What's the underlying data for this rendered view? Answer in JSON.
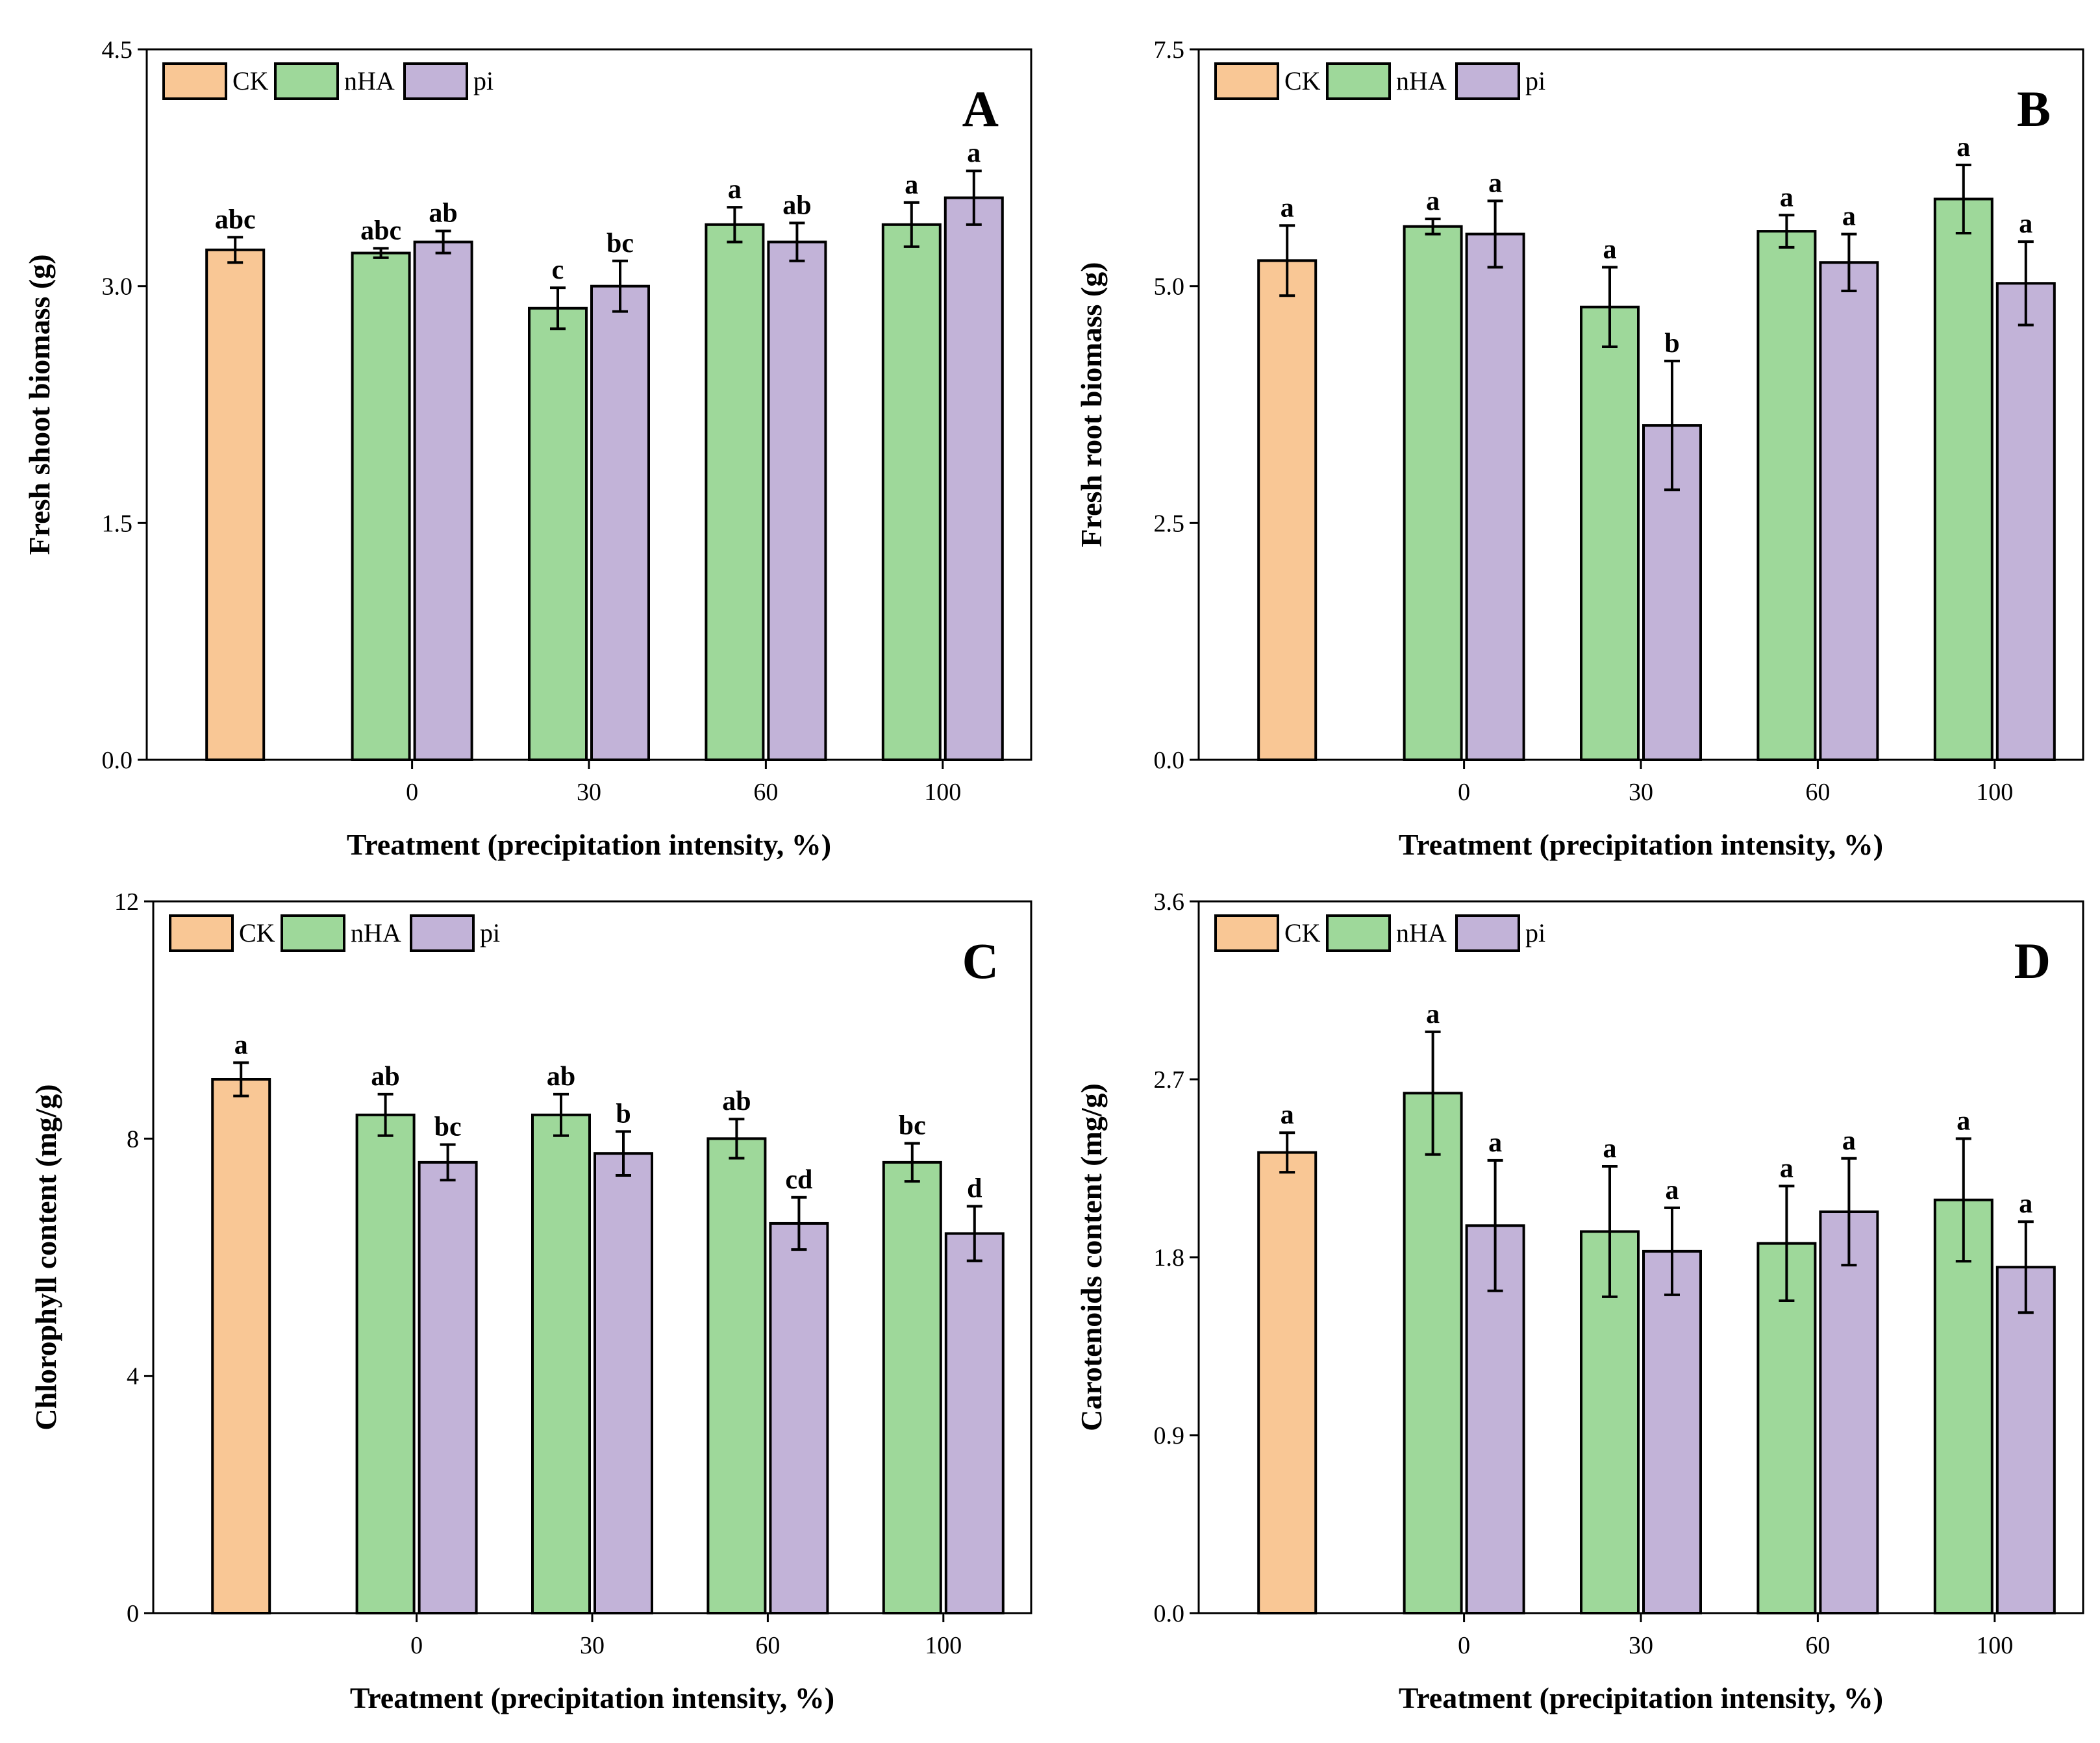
{
  "figure_title": "",
  "chart_data": [
    {
      "panel": "A",
      "type": "bar",
      "title": "",
      "xlabel": "Treatment (precipitation intensity, %)",
      "ylabel": "Fresh shoot biomass (g)",
      "ylim": [
        0,
        4.5
      ],
      "yticks": [
        "0.0",
        "1.5",
        "3.0",
        "4.5"
      ],
      "categories": [
        "",
        "0",
        "30",
        "60",
        "100"
      ],
      "legend": [
        "CK",
        "nHA",
        "pi"
      ],
      "legend_position": "top-left",
      "series": [
        {
          "name": "CK",
          "color": "#f9c795",
          "values": [
            3.23,
            null,
            null,
            null,
            null
          ],
          "errors": [
            0.08,
            null,
            null,
            null,
            null
          ],
          "letters": [
            "abc",
            null,
            null,
            null,
            null
          ]
        },
        {
          "name": "nHA",
          "color": "#9ed89a",
          "values": [
            null,
            3.21,
            2.86,
            3.39,
            3.39
          ],
          "errors": [
            null,
            0.03,
            0.13,
            0.11,
            0.14
          ],
          "letters": [
            null,
            "abc",
            "c",
            "a",
            "a"
          ]
        },
        {
          "name": "pi",
          "color": "#c2b3d8",
          "values": [
            null,
            3.28,
            3.0,
            3.28,
            3.56
          ],
          "errors": [
            null,
            0.07,
            0.16,
            0.12,
            0.17
          ],
          "letters": [
            null,
            "ab",
            "bc",
            "ab",
            "a"
          ]
        }
      ]
    },
    {
      "panel": "B",
      "type": "bar",
      "title": "",
      "xlabel": "Treatment (precipitation intensity, %)",
      "ylabel": "Fresh root biomass (g)",
      "ylim": [
        0,
        7.5
      ],
      "yticks": [
        "0.0",
        "2.5",
        "5.0",
        "7.5"
      ],
      "categories": [
        "",
        "0",
        "30",
        "60",
        "100"
      ],
      "legend": [
        "CK",
        "nHA",
        "pi"
      ],
      "legend_position": "top-left",
      "series": [
        {
          "name": "CK",
          "color": "#f9c795",
          "values": [
            5.27,
            null,
            null,
            null,
            null
          ],
          "errors": [
            0.37,
            null,
            null,
            null,
            null
          ],
          "letters": [
            "a",
            null,
            null,
            null,
            null
          ]
        },
        {
          "name": "nHA",
          "color": "#9ed89a",
          "values": [
            null,
            5.63,
            4.78,
            5.58,
            5.92
          ],
          "errors": [
            null,
            0.08,
            0.42,
            0.17,
            0.36
          ],
          "letters": [
            null,
            "a",
            "a",
            "a",
            "a"
          ]
        },
        {
          "name": "pi",
          "color": "#c2b3d8",
          "values": [
            null,
            5.55,
            3.53,
            5.25,
            5.03
          ],
          "errors": [
            null,
            0.35,
            0.68,
            0.3,
            0.44
          ],
          "letters": [
            null,
            "a",
            "b",
            "a",
            "a"
          ]
        }
      ]
    },
    {
      "panel": "C",
      "type": "bar",
      "title": "",
      "xlabel": "Treatment (precipitation intensity, %)",
      "ylabel": "Chlorophyll content (mg/g)",
      "ylim": [
        0,
        12
      ],
      "yticks": [
        "0",
        "4",
        "8",
        "12"
      ],
      "categories": [
        "",
        "0",
        "30",
        "60",
        "100"
      ],
      "legend": [
        "CK",
        "nHA",
        "pi"
      ],
      "legend_position": "top-left",
      "series": [
        {
          "name": "CK",
          "color": "#f9c795",
          "values": [
            9.0,
            null,
            null,
            null,
            null
          ],
          "errors": [
            0.28,
            null,
            null,
            null,
            null
          ],
          "letters": [
            "a",
            null,
            null,
            null,
            null
          ]
        },
        {
          "name": "nHA",
          "color": "#9ed89a",
          "values": [
            null,
            8.4,
            8.4,
            8.0,
            7.6
          ],
          "errors": [
            null,
            0.35,
            0.35,
            0.33,
            0.32
          ],
          "letters": [
            null,
            "ab",
            "ab",
            "ab",
            "bc"
          ]
        },
        {
          "name": "pi",
          "color": "#c2b3d8",
          "values": [
            null,
            7.6,
            7.75,
            6.57,
            6.4
          ],
          "errors": [
            null,
            0.3,
            0.37,
            0.44,
            0.46
          ],
          "letters": [
            null,
            "bc",
            "b",
            "cd",
            "d"
          ]
        }
      ]
    },
    {
      "panel": "D",
      "type": "bar",
      "title": "",
      "xlabel": "Treatment (precipitation intensity, %)",
      "ylabel": "Carotenoids content (mg/g)",
      "ylim": [
        0,
        3.6
      ],
      "yticks": [
        "0.0",
        "0.9",
        "1.8",
        "2.7",
        "3.6"
      ],
      "categories": [
        "",
        "0",
        "30",
        "60",
        "100"
      ],
      "legend": [
        "CK",
        "nHA",
        "pi"
      ],
      "legend_position": "top-left",
      "series": [
        {
          "name": "CK",
          "color": "#f9c795",
          "values": [
            2.33,
            null,
            null,
            null,
            null
          ],
          "errors": [
            0.1,
            null,
            null,
            null,
            null
          ],
          "letters": [
            "a",
            null,
            null,
            null,
            null
          ]
        },
        {
          "name": "nHA",
          "color": "#9ed89a",
          "values": [
            null,
            2.63,
            1.93,
            1.87,
            2.09
          ],
          "errors": [
            null,
            0.31,
            0.33,
            0.29,
            0.31
          ],
          "letters": [
            null,
            "a",
            "a",
            "a",
            "a"
          ]
        },
        {
          "name": "pi",
          "color": "#c2b3d8",
          "values": [
            null,
            1.96,
            1.83,
            2.03,
            1.75
          ],
          "errors": [
            null,
            0.33,
            0.22,
            0.27,
            0.23
          ],
          "letters": [
            null,
            "a",
            "a",
            "a",
            "a"
          ]
        }
      ]
    }
  ]
}
